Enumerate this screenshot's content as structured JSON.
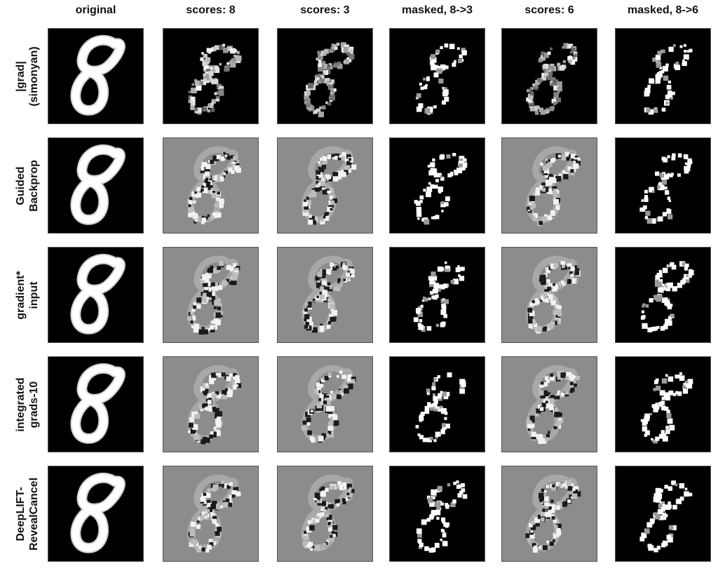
{
  "columns": [
    {
      "label": "original",
      "background": "#000000"
    },
    {
      "label": "scores: 8",
      "background": "#000000"
    },
    {
      "label": "scores: 3",
      "background": "#000000"
    },
    {
      "label": "masked, 8->3",
      "background": "#000000"
    },
    {
      "label": "scores: 6",
      "background": "#000000"
    },
    {
      "label": "masked, 8->6",
      "background": "#000000"
    }
  ],
  "rows": [
    {
      "label_lines": [
        "|grad|",
        "(simonyan)"
      ],
      "score_background": "#000000"
    },
    {
      "label_lines": [
        "Guided",
        "Backprop"
      ],
      "score_background": "#8c8c8c"
    },
    {
      "label_lines": [
        "gradient*",
        "input"
      ],
      "score_background": "#8c8c8c"
    },
    {
      "label_lines": [
        "integrated",
        "grads-10"
      ],
      "score_background": "#8c8c8c"
    },
    {
      "label_lines": [
        "DeepLIFT-",
        "RevealCancel"
      ],
      "score_background": "#8c8c8c"
    }
  ],
  "colors": {
    "positive": "#ffffff",
    "negative": "#000000",
    "neutral_gray": "#8c8c8c"
  }
}
